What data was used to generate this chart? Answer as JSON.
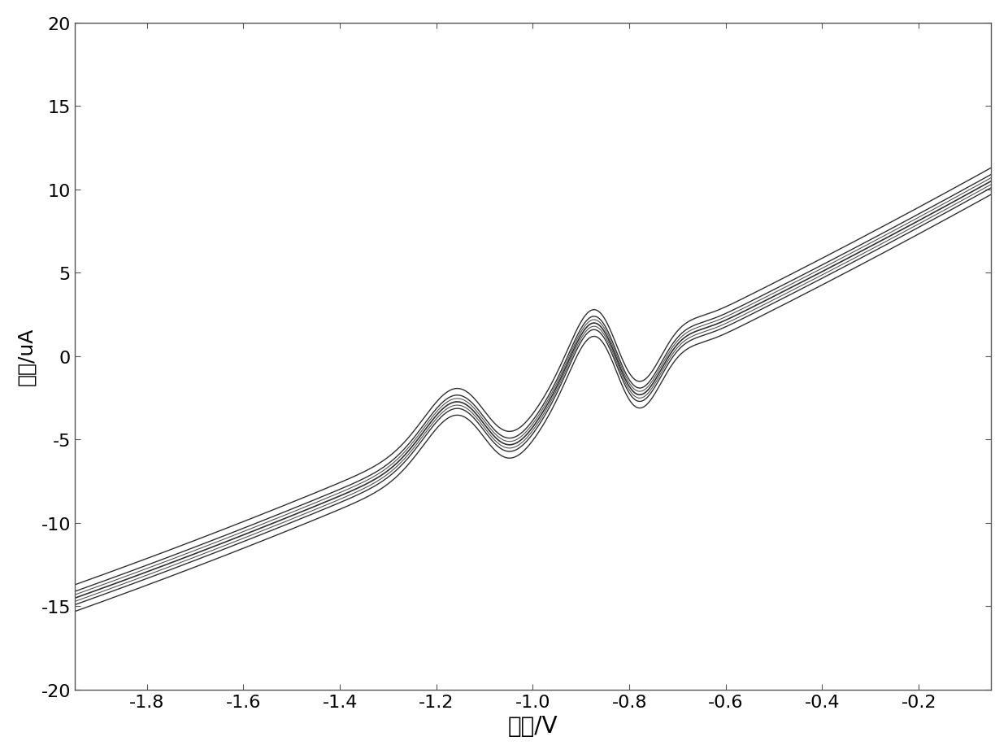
{
  "xlabel": "电压/V",
  "ylabel": "电流/uA",
  "xlim": [
    -1.95,
    -0.05
  ],
  "ylim": [
    -20,
    20
  ],
  "xticks": [
    -1.8,
    -1.6,
    -1.4,
    -1.2,
    -1.0,
    -0.8,
    -0.6,
    -0.4,
    -0.2
  ],
  "yticks": [
    -20,
    -15,
    -10,
    -5,
    0,
    5,
    10,
    15,
    20
  ],
  "background_color": "#ffffff",
  "line_color": "#1a1a1a",
  "xlabel_fontsize": 20,
  "ylabel_fontsize": 18,
  "tick_fontsize": 16
}
